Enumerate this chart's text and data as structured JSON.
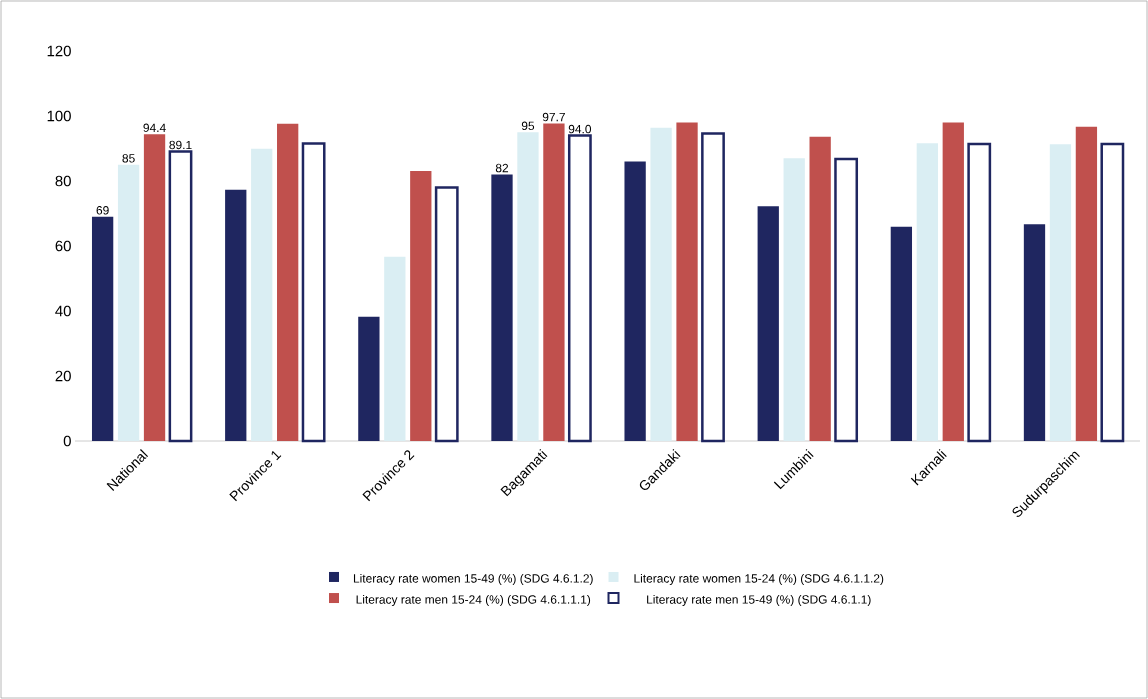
{
  "chart_data": {
    "type": "bar",
    "categories": [
      "National",
      "Province 1",
      "Province 2",
      "Bagamati",
      "Gandaki",
      "Lumbini",
      "Karnali",
      "Sudurpaschim"
    ],
    "series": [
      {
        "name": "Literacy rate women 15-49 (%) (SDG 4.6.1.2)",
        "color": "#1f2660",
        "values": [
          69,
          77.3,
          38.2,
          82,
          86.0,
          72.2,
          65.9,
          66.7
        ],
        "value_labels": [
          "69",
          null,
          null,
          "82",
          null,
          null,
          null,
          null
        ]
      },
      {
        "name": "Literacy rate women 15-24 (%) (SDG 4.6.1.1.2)",
        "color": "#daeef3",
        "values": [
          85,
          89.9,
          56.7,
          95,
          96.4,
          87.0,
          91.6,
          91.3
        ],
        "value_labels": [
          "85",
          null,
          null,
          "95",
          null,
          null,
          null,
          null
        ]
      },
      {
        "name": "Literacy rate men 15-24 (%) (SDG 4.6.1.1.1)",
        "color": "#c0504d",
        "values": [
          94.4,
          97.6,
          83.1,
          97.7,
          98.0,
          93.6,
          98.0,
          96.7
        ],
        "value_labels": [
          "94.4",
          null,
          null,
          "97.7",
          null,
          null,
          null,
          null
        ]
      },
      {
        "name": "Literacy rate men 15-49 (%) (SDG 4.6.1.1)",
        "color": "#1f2660",
        "values": [
          89.1,
          91.5,
          78.0,
          94.0,
          94.6,
          86.8,
          91.4,
          91.4
        ],
        "value_labels": [
          "89.1",
          null,
          null,
          "94.0",
          null,
          null,
          null,
          null
        ]
      }
    ],
    "ylim": [
      0,
      120
    ],
    "yticks": [
      0,
      20,
      40,
      60,
      80,
      100,
      120
    ],
    "legend": "bottom"
  }
}
